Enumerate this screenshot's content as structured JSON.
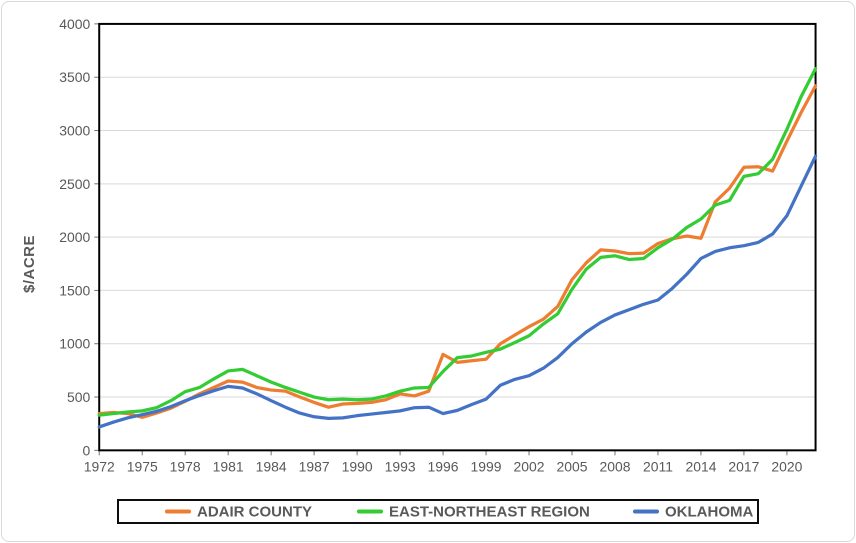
{
  "colors": {
    "background": "#FFFFFF",
    "frame_border": "#D9D9D9",
    "plot_border": "#000000",
    "gridline": "#D9D9D9",
    "tick": "#737373",
    "text": "#595959"
  },
  "chart_data": {
    "type": "line",
    "title": "",
    "xlabel": "",
    "ylabel": "$/ACRE",
    "ylim": [
      0,
      4000
    ],
    "y_tick_step": 500,
    "y_tick_labels": [
      "0",
      "500",
      "1000",
      "1500",
      "2000",
      "2500",
      "3000",
      "3500",
      "4000"
    ],
    "x_start": 1972,
    "x_end": 2022,
    "x_tick_step": 3,
    "x_tick_labels": [
      "1972",
      "1975",
      "1978",
      "1981",
      "1984",
      "1987",
      "1990",
      "1993",
      "1996",
      "1999",
      "2002",
      "2005",
      "2008",
      "2011",
      "2014",
      "2017",
      "2020"
    ],
    "grid": "horizontal-only",
    "legend_position": "bottom",
    "years": [
      1972,
      1973,
      1974,
      1975,
      1976,
      1977,
      1978,
      1979,
      1980,
      1981,
      1982,
      1983,
      1984,
      1985,
      1986,
      1987,
      1988,
      1989,
      1990,
      1991,
      1992,
      1993,
      1994,
      1995,
      1996,
      1997,
      1998,
      1999,
      2000,
      2001,
      2002,
      2003,
      2004,
      2005,
      2006,
      2007,
      2008,
      2009,
      2010,
      2011,
      2012,
      2013,
      2014,
      2015,
      2016,
      2017,
      2018,
      2019,
      2020,
      2021,
      2022
    ],
    "series": [
      {
        "name": "ADAIR COUNTY",
        "color": "#ED7D31",
        "values": [
          345,
          355,
          345,
          310,
          350,
          395,
          460,
          530,
          590,
          650,
          640,
          590,
          565,
          555,
          500,
          450,
          405,
          435,
          440,
          450,
          475,
          530,
          510,
          555,
          900,
          825,
          840,
          855,
          1000,
          1080,
          1160,
          1230,
          1350,
          1600,
          1760,
          1880,
          1870,
          1845,
          1850,
          1940,
          1985,
          2010,
          1990,
          2330,
          2460,
          2655,
          2660,
          2620,
          2900,
          3170,
          3420
        ]
      },
      {
        "name": "EAST-NORTHEAST REGION",
        "color": "#33CC33",
        "values": [
          330,
          345,
          360,
          370,
          400,
          465,
          550,
          590,
          670,
          745,
          760,
          700,
          640,
          590,
          545,
          500,
          475,
          480,
          475,
          480,
          510,
          555,
          585,
          590,
          740,
          870,
          885,
          920,
          950,
          1010,
          1075,
          1185,
          1280,
          1510,
          1700,
          1810,
          1825,
          1790,
          1800,
          1900,
          1980,
          2090,
          2170,
          2300,
          2345,
          2570,
          2595,
          2730,
          3010,
          3320,
          3580
        ]
      },
      {
        "name": "OKLAHOMA",
        "color": "#4472C4",
        "values": [
          220,
          265,
          305,
          335,
          365,
          410,
          465,
          515,
          560,
          600,
          585,
          530,
          465,
          405,
          350,
          315,
          300,
          305,
          325,
          340,
          355,
          370,
          400,
          405,
          345,
          375,
          430,
          480,
          610,
          665,
          700,
          770,
          870,
          1000,
          1110,
          1200,
          1270,
          1320,
          1370,
          1410,
          1520,
          1650,
          1800,
          1865,
          1900,
          1920,
          1950,
          2030,
          2200,
          2480,
          2760
        ]
      }
    ]
  }
}
